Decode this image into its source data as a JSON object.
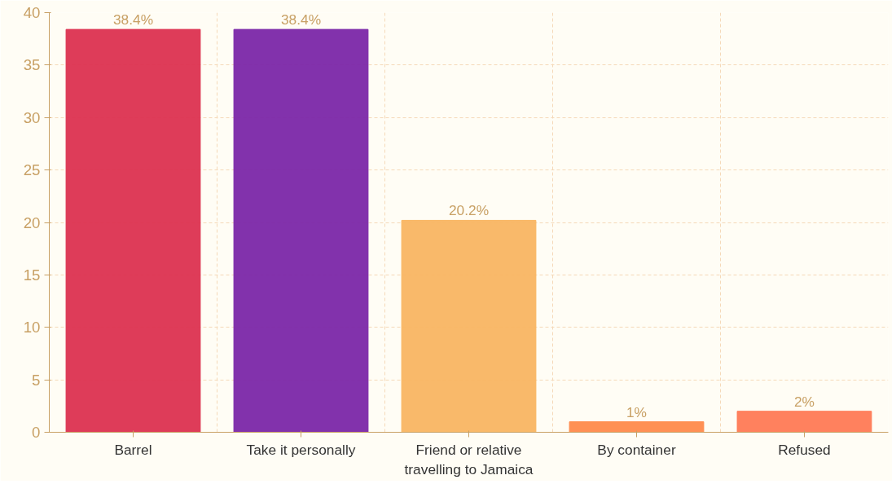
{
  "chart_data": {
    "type": "bar",
    "categories": [
      "Barrel",
      "Take it personally",
      "Friend or relative travelling to Jamaica",
      "By container",
      "Refused"
    ],
    "values": [
      38.4,
      38.4,
      20.2,
      1,
      2
    ],
    "colors": [
      "#dc3250",
      "#7b27a8",
      "#f9b562",
      "#ff8a4c",
      "#ff7a55"
    ],
    "value_labels": [
      "38.4%",
      "38.4%",
      "20.2%",
      "1%",
      "2%"
    ],
    "ylim": [
      0,
      40
    ],
    "yticks": [
      0,
      5,
      10,
      15,
      20,
      25,
      30,
      35,
      40
    ],
    "grid": true
  }
}
